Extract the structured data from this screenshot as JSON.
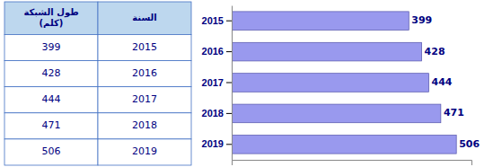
{
  "chart_data": [
    {
      "type": "table",
      "columns": [
        "طول الشبكة\n(كلم)",
        "السنة"
      ],
      "rows": [
        [
          "399",
          "2015"
        ],
        [
          "428",
          "2016"
        ],
        [
          "444",
          "2017"
        ],
        [
          "471",
          "2018"
        ],
        [
          "506",
          "2019"
        ]
      ]
    },
    {
      "type": "bar",
      "orientation": "horizontal",
      "categories": [
        "2019",
        "2018",
        "2017",
        "2016",
        "2015"
      ],
      "values": [
        506,
        471,
        444,
        428,
        399
      ],
      "color": "#9999EE",
      "xlim": [
        0,
        540
      ],
      "data_labels": true,
      "tick_labels": "y",
      "grid": false
    }
  ]
}
